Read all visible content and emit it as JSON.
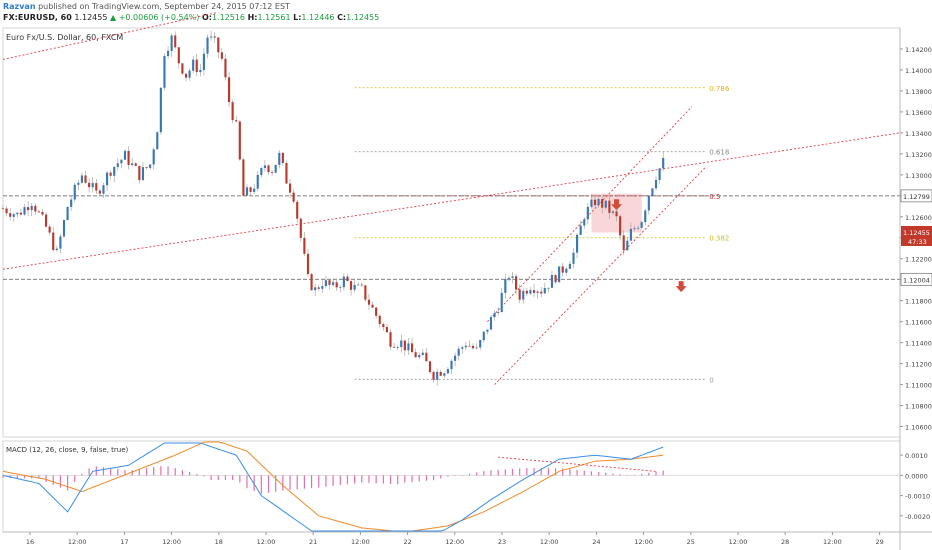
{
  "header": {
    "author": "Razvan",
    "published_text": "published on TradingView.com, September 24, 2015 07:12 EST",
    "symbol": "FX:EURUSD, 60",
    "last": "1.12455",
    "change": "▲ +0.00606 (+0.54%)",
    "o_label": "O:",
    "o_value": "1.12516",
    "h_label": "H:",
    "h_value": "1.12561",
    "l_label": "L:",
    "l_value": "1.12446",
    "c_label": "C:",
    "c_value": "1.12455"
  },
  "chart_data": [
    {
      "type": "candlestick",
      "title": "Euro Fx/U.S. Dollar, 60, FXCM",
      "ylim": [
        1.105,
        1.144
      ],
      "y_ticks": [
        "1.14200",
        "1.14000",
        "1.13800",
        "1.13600",
        "1.13400",
        "1.13200",
        "1.13000",
        "1.12800",
        "1.12600",
        "1.12400",
        "1.12200",
        "1.12000",
        "1.11800",
        "1.11600",
        "1.11400",
        "1.11200",
        "1.11000",
        "1.10800",
        "1.10600"
      ],
      "x_tick_labels": [
        "16",
        "12:00",
        "17",
        "12:00",
        "18",
        "12:00",
        "21",
        "12:00",
        "22",
        "12:00",
        "23",
        "12:00",
        "24",
        "12:00",
        "25",
        "12:00",
        "28",
        "12:00",
        "29"
      ],
      "price_markers": [
        {
          "label": "1.12799",
          "value": 1.12799
        },
        {
          "label": "1.12455",
          "value": 1.12455,
          "sub": "47:33"
        },
        {
          "label": "1.12004",
          "value": 1.12004
        }
      ],
      "fib_levels": [
        {
          "label": "0.786",
          "value": 1.1383
        },
        {
          "label": "0.618",
          "value": 1.1322
        },
        {
          "label": "0.5",
          "value": 1.128
        },
        {
          "label": "0.382",
          "value": 1.124
        },
        {
          "label": "0",
          "value": 1.1105
        }
      ],
      "candle_colors": {
        "up": "#3a78b4",
        "down": "#b83a2e"
      },
      "path_points": [
        {
          "x": 0,
          "y": 1.1268
        },
        {
          "x": 4,
          "y": 1.1262
        },
        {
          "x": 8,
          "y": 1.1275
        },
        {
          "x": 12,
          "y": 1.125
        },
        {
          "x": 15,
          "y": 1.1225
        },
        {
          "x": 18,
          "y": 1.127
        },
        {
          "x": 22,
          "y": 1.13
        },
        {
          "x": 26,
          "y": 1.1282
        },
        {
          "x": 30,
          "y": 1.1305
        },
        {
          "x": 34,
          "y": 1.1318
        },
        {
          "x": 38,
          "y": 1.13
        },
        {
          "x": 41,
          "y": 1.131
        },
        {
          "x": 43,
          "y": 1.1345
        },
        {
          "x": 45,
          "y": 1.1418
        },
        {
          "x": 47,
          "y": 1.143
        },
        {
          "x": 49,
          "y": 1.1408
        },
        {
          "x": 51,
          "y": 1.1395
        },
        {
          "x": 53,
          "y": 1.1405
        },
        {
          "x": 55,
          "y": 1.14
        },
        {
          "x": 57,
          "y": 1.1432
        },
        {
          "x": 59,
          "y": 1.1425
        },
        {
          "x": 61,
          "y": 1.141
        },
        {
          "x": 63,
          "y": 1.137
        },
        {
          "x": 65,
          "y": 1.1345
        },
        {
          "x": 67,
          "y": 1.128
        },
        {
          "x": 69,
          "y": 1.1285
        },
        {
          "x": 71,
          "y": 1.1295
        },
        {
          "x": 73,
          "y": 1.131
        },
        {
          "x": 75,
          "y": 1.1305
        },
        {
          "x": 77,
          "y": 1.1318
        },
        {
          "x": 79,
          "y": 1.1295
        },
        {
          "x": 81,
          "y": 1.128
        },
        {
          "x": 83,
          "y": 1.124
        },
        {
          "x": 85,
          "y": 1.12
        },
        {
          "x": 87,
          "y": 1.119
        },
        {
          "x": 89,
          "y": 1.1198
        },
        {
          "x": 92,
          "y": 1.1192
        },
        {
          "x": 95,
          "y": 1.12
        },
        {
          "x": 98,
          "y": 1.1192
        },
        {
          "x": 100,
          "y": 1.119
        },
        {
          "x": 102,
          "y": 1.1178
        },
        {
          "x": 105,
          "y": 1.116
        },
        {
          "x": 108,
          "y": 1.1142
        },
        {
          "x": 111,
          "y": 1.114
        },
        {
          "x": 114,
          "y": 1.113
        },
        {
          "x": 117,
          "y": 1.1125
        },
        {
          "x": 120,
          "y": 1.111
        },
        {
          "x": 123,
          "y": 1.1115
        },
        {
          "x": 126,
          "y": 1.1128
        },
        {
          "x": 129,
          "y": 1.114
        },
        {
          "x": 132,
          "y": 1.1132
        },
        {
          "x": 135,
          "y": 1.1155
        },
        {
          "x": 138,
          "y": 1.1175
        },
        {
          "x": 141,
          "y": 1.1205
        },
        {
          "x": 144,
          "y": 1.1185
        },
        {
          "x": 147,
          "y": 1.1195
        },
        {
          "x": 150,
          "y": 1.119
        },
        {
          "x": 153,
          "y": 1.12
        },
        {
          "x": 156,
          "y": 1.121
        },
        {
          "x": 159,
          "y": 1.1225
        },
        {
          "x": 162,
          "y": 1.1262
        },
        {
          "x": 165,
          "y": 1.1275
        },
        {
          "x": 168,
          "y": 1.127
        },
        {
          "x": 171,
          "y": 1.1258
        },
        {
          "x": 173,
          "y": 1.1225
        },
        {
          "x": 175,
          "y": 1.1245
        },
        {
          "x": 178,
          "y": 1.1258
        },
        {
          "x": 180,
          "y": 1.1282
        },
        {
          "x": 182,
          "y": 1.13
        },
        {
          "x": 184,
          "y": 1.1312
        }
      ],
      "x_index_range": [
        0,
        250
      ],
      "annotations": [
        {
          "type": "trendline",
          "from": [
            0,
            1.121
          ],
          "to": [
            250,
            1.134
          ]
        },
        {
          "type": "trendline",
          "from": [
            0,
            1.141
          ],
          "to": [
            60,
            1.1455
          ]
        },
        {
          "type": "channel_upper",
          "from": [
            135,
            1.116
          ],
          "to": [
            192,
            1.1365
          ]
        },
        {
          "type": "channel_lower",
          "from": [
            137,
            1.11
          ],
          "to": [
            196,
            1.1308
          ]
        },
        {
          "type": "resistance_zone",
          "x_from": [
            164,
            178
          ],
          "y_from": [
            1.1245,
            1.1282
          ]
        },
        {
          "type": "arrow_down",
          "x": 171,
          "y": 1.127
        },
        {
          "type": "arrow_down",
          "x": 189,
          "y": 1.1192
        }
      ]
    },
    {
      "type": "macd",
      "title": "MACD (12, 26, close, 9, false, true)",
      "ylim": [
        -0.0028,
        0.0017
      ],
      "y_ticks": [
        "0.0010",
        "0.0000",
        "-0.0010",
        "-0.0020"
      ],
      "series": [
        {
          "name": "MACD",
          "color": "#3a8ee6"
        },
        {
          "name": "Signal",
          "color": "#f08a2a"
        },
        {
          "name": "Histogram",
          "color": "#e46fb0"
        }
      ],
      "macd_points": [
        {
          "x": 0,
          "y": 0.0
        },
        {
          "x": 10,
          "y": -0.0004
        },
        {
          "x": 18,
          "y": -0.0018
        },
        {
          "x": 25,
          "y": 0.0002
        },
        {
          "x": 35,
          "y": 0.0005
        },
        {
          "x": 45,
          "y": 0.0016
        },
        {
          "x": 55,
          "y": 0.0016
        },
        {
          "x": 65,
          "y": 0.001
        },
        {
          "x": 72,
          "y": -0.001
        },
        {
          "x": 80,
          "y": -0.002
        },
        {
          "x": 88,
          "y": -0.003
        },
        {
          "x": 100,
          "y": -0.0032
        },
        {
          "x": 110,
          "y": -0.0035
        },
        {
          "x": 120,
          "y": -0.003
        },
        {
          "x": 128,
          "y": -0.0022
        },
        {
          "x": 136,
          "y": -0.0012
        },
        {
          "x": 145,
          "y": -0.0002
        },
        {
          "x": 155,
          "y": 0.0008
        },
        {
          "x": 165,
          "y": 0.001
        },
        {
          "x": 175,
          "y": 0.0008
        },
        {
          "x": 184,
          "y": 0.0014
        }
      ],
      "signal_points": [
        {
          "x": 0,
          "y": 0.0002
        },
        {
          "x": 12,
          "y": -0.0002
        },
        {
          "x": 22,
          "y": -0.0008
        },
        {
          "x": 35,
          "y": 0.0001
        },
        {
          "x": 48,
          "y": 0.001
        },
        {
          "x": 58,
          "y": 0.0018
        },
        {
          "x": 68,
          "y": 0.0012
        },
        {
          "x": 78,
          "y": -0.0005
        },
        {
          "x": 88,
          "y": -0.002
        },
        {
          "x": 100,
          "y": -0.0026
        },
        {
          "x": 112,
          "y": -0.0028
        },
        {
          "x": 124,
          "y": -0.0025
        },
        {
          "x": 134,
          "y": -0.0018
        },
        {
          "x": 145,
          "y": -0.0008
        },
        {
          "x": 155,
          "y": 0.0002
        },
        {
          "x": 165,
          "y": 0.0007
        },
        {
          "x": 175,
          "y": 0.0008
        },
        {
          "x": 184,
          "y": 0.001
        }
      ],
      "divergence_line": {
        "from": [
          138,
          0.0009
        ],
        "to": [
          182,
          0.0002
        ]
      }
    }
  ]
}
